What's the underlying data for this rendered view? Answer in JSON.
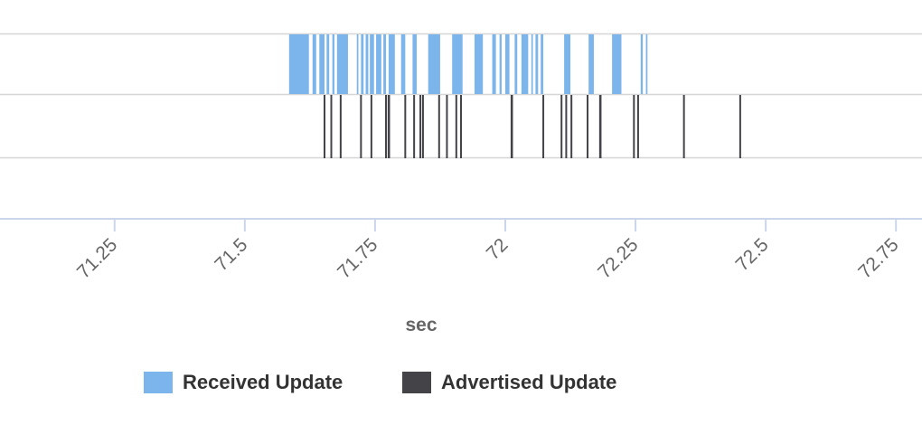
{
  "chart_data": {
    "type": "bar",
    "xlabel": "sec",
    "xlim": [
      71.03,
      72.8
    ],
    "x_ticks": [
      71.25,
      71.5,
      71.75,
      72,
      72.25,
      72.5,
      72.75
    ],
    "x_tick_labels": [
      "71.25",
      "71.5",
      "71.75",
      "72",
      "72.25",
      "72.5",
      "72.75"
    ],
    "legend_position": "bottom-center",
    "series": [
      {
        "name": "Received Update",
        "color": "#7cb5ec",
        "events": [
          [
            71.585,
            71.623
          ],
          [
            71.63,
            71.637
          ],
          [
            71.643,
            71.653
          ],
          [
            71.657,
            71.662
          ],
          [
            71.668,
            71.672
          ],
          [
            71.677,
            71.698
          ],
          [
            71.715,
            71.718
          ],
          [
            71.723,
            71.728
          ],
          [
            71.732,
            71.737
          ],
          [
            71.74,
            71.748
          ],
          [
            71.752,
            71.762
          ],
          [
            71.766,
            71.771
          ],
          [
            71.776,
            71.788
          ],
          [
            71.8,
            71.808
          ],
          [
            71.822,
            71.83
          ],
          [
            71.852,
            71.875
          ],
          [
            71.898,
            71.918
          ],
          [
            71.941,
            71.957
          ],
          [
            71.975,
            71.982
          ],
          [
            71.989,
            71.993
          ],
          [
            72.0,
            72.008
          ],
          [
            72.018,
            72.023
          ],
          [
            72.031,
            72.044
          ],
          [
            72.05,
            72.053
          ],
          [
            72.058,
            72.063
          ],
          [
            72.068,
            72.073
          ],
          [
            72.113,
            72.125
          ],
          [
            72.16,
            72.17
          ],
          [
            72.205,
            72.223
          ],
          [
            72.26,
            72.264
          ],
          [
            72.27,
            72.273
          ]
        ]
      },
      {
        "name": "Advertised Update",
        "color": "#434348",
        "events": [
          71.653,
          71.666,
          71.684,
          71.723,
          71.743,
          71.771,
          71.776,
          71.777,
          71.808,
          71.825,
          71.837,
          71.842,
          71.873,
          71.888,
          71.906,
          71.915,
          72.012,
          72.013,
          72.073,
          72.108,
          72.117,
          72.127,
          72.158,
          72.182,
          72.183,
          72.247,
          72.255,
          72.343,
          72.451
        ]
      }
    ]
  }
}
